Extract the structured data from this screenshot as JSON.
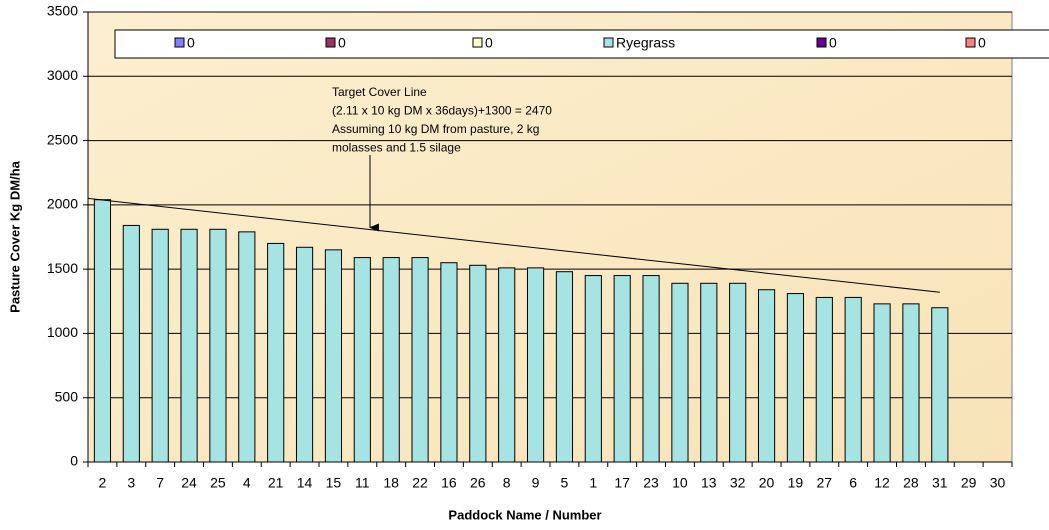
{
  "chart_data": {
    "type": "bar",
    "categories": [
      "2",
      "3",
      "7",
      "24",
      "25",
      "4",
      "21",
      "14",
      "15",
      "11",
      "18",
      "22",
      "16",
      "26",
      "8",
      "9",
      "5",
      "1",
      "17",
      "23",
      "10",
      "13",
      "32",
      "20",
      "19",
      "27",
      "6",
      "12",
      "28",
      "31",
      "29",
      "30"
    ],
    "series": [
      {
        "name": "0",
        "color": "#7f7fff"
      },
      {
        "name": "0",
        "color": "#993366"
      },
      {
        "name": "0",
        "color": "#ffffcc"
      },
      {
        "name": "Ryegrass",
        "color": "#a6e3e3",
        "values": [
          2040,
          1840,
          1810,
          1810,
          1810,
          1790,
          1700,
          1670,
          1650,
          1590,
          1590,
          1590,
          1550,
          1530,
          1510,
          1510,
          1480,
          1450,
          1450,
          1450,
          1390,
          1390,
          1390,
          1340,
          1310,
          1280,
          1280,
          1230,
          1230,
          1200,
          null,
          null
        ]
      },
      {
        "name": "0",
        "color": "#660099"
      },
      {
        "name": "0",
        "color": "#ff8080"
      }
    ],
    "ylim": [
      0,
      3500
    ],
    "yticks": [
      0,
      500,
      1000,
      1500,
      2000,
      2500,
      3000,
      3500
    ],
    "grid": true,
    "y_label": "Pasture Cover Kg DM/ha",
    "x_label": "Paddock Name / Number",
    "annotation": [
      "Target Cover Line",
      "(2.11 x 10 kg DM x 36days)+1300 = 2470",
      "Assuming  10 kg DM from pasture, 2 kg",
      "molasses and 1.5 silage"
    ],
    "target_line": {
      "from": {
        "x": "2",
        "y": 2050
      },
      "to": {
        "x": "31",
        "y": 1320
      }
    }
  }
}
